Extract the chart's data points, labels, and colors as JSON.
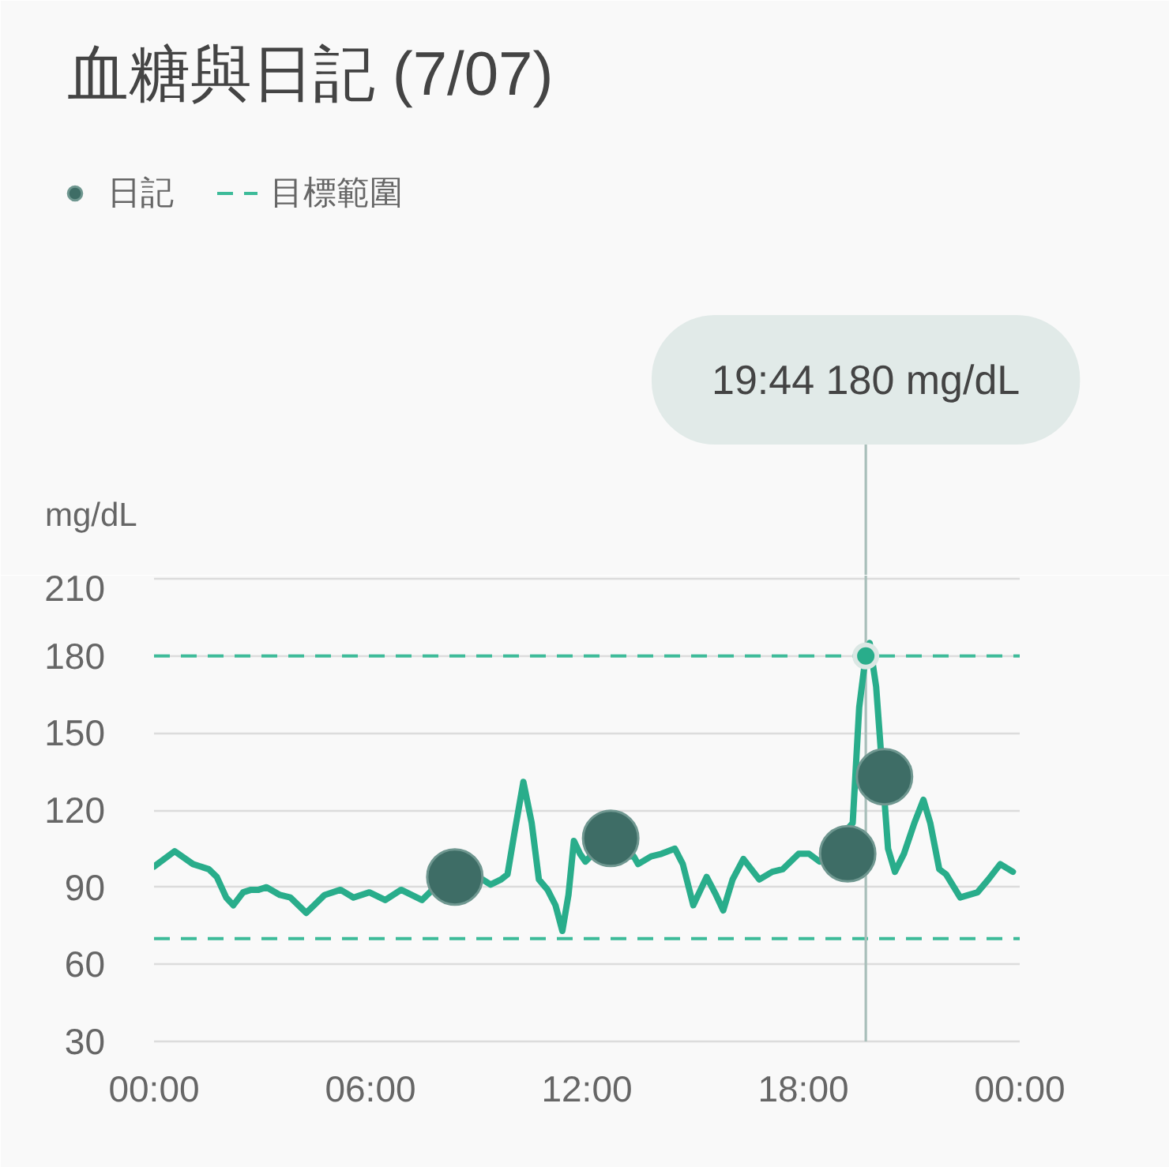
{
  "chart_data": {
    "type": "line",
    "title": "血糖與日記 (7/07)",
    "ylabel": "mg/dL",
    "xlim": [
      0,
      24
    ],
    "ylim": [
      30,
      210
    ],
    "xticks": [
      {
        "value": 0,
        "label": "00:00"
      },
      {
        "value": 6,
        "label": "06:00"
      },
      {
        "value": 12,
        "label": "12:00"
      },
      {
        "value": 18,
        "label": "18:00"
      },
      {
        "value": 24,
        "label": "00:00"
      }
    ],
    "yticks": [
      30,
      60,
      90,
      120,
      150,
      180,
      210
    ],
    "grid": "y",
    "legend": "top left",
    "series": [
      {
        "color": "#29ad8b",
        "x": [
          0,
          0.57,
          1.08,
          1.52,
          1.74,
          2.0,
          2.2,
          2.47,
          2.69,
          2.9,
          3.12,
          3.49,
          3.78,
          4.0,
          4.22,
          4.44,
          4.73,
          5.17,
          5.53,
          5.97,
          6.41,
          6.85,
          7.14,
          7.43,
          7.72,
          9.11,
          9.33,
          9.62,
          9.8,
          9.99,
          10.24,
          10.47,
          10.67,
          10.91,
          11.13,
          11.32,
          11.49,
          11.64,
          11.81,
          11.96,
          12.1,
          13.3,
          13.42,
          13.78,
          14.07,
          14.44,
          14.66,
          14.95,
          15.32,
          15.58,
          15.78,
          16.04,
          16.34,
          16.56,
          16.78,
          17.14,
          17.43,
          17.87,
          18.16,
          18.45,
          19.37,
          19.55,
          19.73,
          19.84,
          20.02,
          20.35,
          20.54,
          20.79,
          21.08,
          21.33,
          21.52,
          21.77,
          21.96,
          22.35,
          22.83,
          23.13,
          23.46,
          23.81
        ],
        "values": [
          98,
          104,
          99,
          97,
          94,
          86,
          83,
          88,
          89,
          89,
          90,
          87,
          86,
          83,
          80,
          83,
          87,
          89,
          86,
          88,
          85,
          89,
          87,
          85,
          89,
          93,
          91,
          93,
          95,
          111,
          131,
          115,
          93,
          89,
          83,
          73,
          87,
          108,
          103,
          100,
          102,
          102,
          99,
          102,
          103,
          105,
          99,
          83,
          94,
          87,
          81,
          93,
          101,
          97,
          93,
          96,
          97,
          103,
          103,
          100,
          115,
          160,
          180,
          185,
          168,
          105,
          96,
          103,
          115,
          124,
          115,
          97,
          95,
          86,
          88,
          93,
          99,
          96
        ]
      },
      {
        "type": "scatter",
        "name": "日記",
        "color": "#3e6d66",
        "marker": "circle",
        "x": [
          8.34,
          12.66,
          19.23,
          20.25
        ],
        "values": [
          94,
          109,
          103,
          133
        ]
      },
      {
        "type": "scatter",
        "color": "#29ad8b",
        "marker": "circle",
        "x": [
          19.733
        ],
        "values": [
          180
        ]
      }
    ],
    "ref_lines": [
      {
        "axis": "y",
        "value": 180,
        "label": "目標範圍",
        "color": "#3dbb99",
        "line_style": "dashed"
      },
      {
        "axis": "y",
        "value": 70,
        "color": "#3dbb99",
        "line_style": "dashed"
      },
      {
        "axis": "x",
        "value": 19.733,
        "color": "#a9bfba"
      }
    ],
    "annotations": [
      "19:44 180 mg/dL"
    ]
  }
}
